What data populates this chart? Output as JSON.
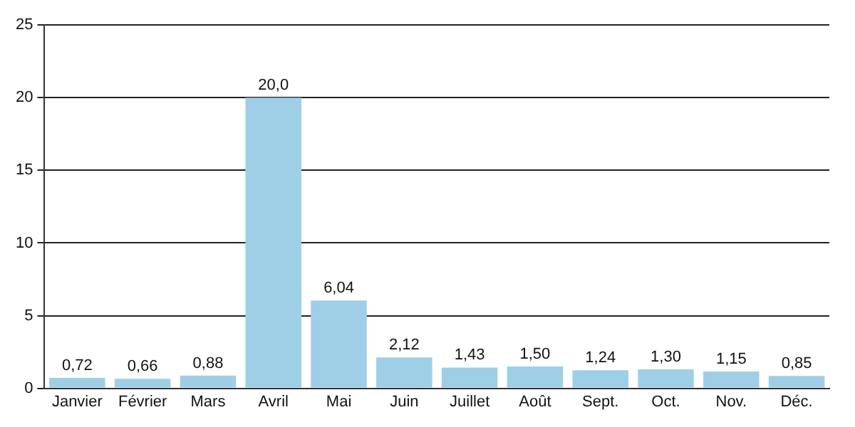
{
  "chart_data": {
    "type": "bar",
    "categories": [
      "Janvier",
      "Février",
      "Mars",
      "Avril",
      "Mai",
      "Juin",
      "Juillet",
      "Août",
      "Sept.",
      "Oct.",
      "Nov.",
      "Déc."
    ],
    "values": [
      0.72,
      0.66,
      0.88,
      20.0,
      6.04,
      2.12,
      1.43,
      1.5,
      1.24,
      1.3,
      1.15,
      0.85
    ],
    "value_labels": [
      "0,72",
      "0,66",
      "0,88",
      "20,0",
      "6,04",
      "2,12",
      "1,43",
      "1,50",
      "1,24",
      "1,30",
      "1,15",
      "0,85"
    ],
    "color": "#9ecfe6",
    "ylim": [
      0,
      25
    ],
    "yticks": [
      0,
      5,
      10,
      15,
      20,
      25
    ],
    "grid": "y",
    "legend": false
  }
}
